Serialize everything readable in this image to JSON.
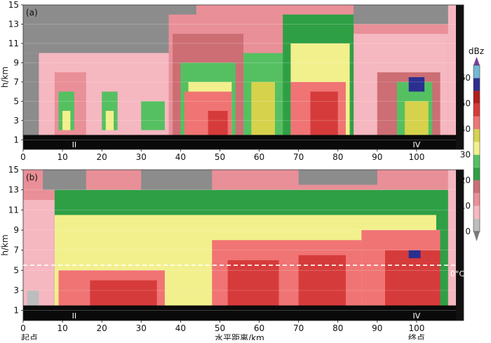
{
  "chart_data": {
    "type": "heatmap",
    "x_unit_label": "水平距离/km",
    "x_start_label": "起点",
    "x_end_label": "终点",
    "xlim": [
      0,
      110
    ],
    "x_ticks": [
      0,
      10,
      20,
      30,
      40,
      50,
      60,
      70,
      80,
      90,
      100
    ],
    "y_label": "h/km",
    "ylim": [
      0,
      15
    ],
    "y_ticks": [
      1,
      3,
      5,
      7,
      9,
      11,
      13,
      15
    ],
    "colorbar": {
      "unit": "dBz",
      "ticks": [
        0,
        10,
        20,
        30,
        40,
        50,
        60
      ],
      "levels": [
        {
          "from": -10,
          "to": 0,
          "color": "#8c8c8c"
        },
        {
          "from": 0,
          "to": 5,
          "color": "#bdbdbd"
        },
        {
          "from": 5,
          "to": 10,
          "color": "#f5b7c0"
        },
        {
          "from": 10,
          "to": 15,
          "color": "#e98f98"
        },
        {
          "from": 15,
          "to": 20,
          "color": "#cc6e74"
        },
        {
          "from": 20,
          "to": 25,
          "color": "#2f9f45"
        },
        {
          "from": 25,
          "to": 30,
          "color": "#55c062"
        },
        {
          "from": 30,
          "to": 35,
          "color": "#f2f08c"
        },
        {
          "from": 35,
          "to": 40,
          "color": "#d7d24c"
        },
        {
          "from": 40,
          "to": 45,
          "color": "#f07474"
        },
        {
          "from": 45,
          "to": 50,
          "color": "#d63b3b"
        },
        {
          "from": 50,
          "to": 55,
          "color": "#b01e1e"
        },
        {
          "from": 55,
          "to": 60,
          "color": "#2a2f8f"
        },
        {
          "from": 60,
          "to": 65,
          "color": "#74b7d4"
        }
      ]
    },
    "panels": [
      {
        "tag": "(a)",
        "markers": [
          {
            "x": 13,
            "text": "II"
          },
          {
            "x": 100,
            "text": "IV"
          }
        ],
        "cells": [
          {
            "x0": 0,
            "x1": 37,
            "y0": 10,
            "y1": 15,
            "dbz": -5
          },
          {
            "x0": 0,
            "x1": 4,
            "y0": 1.5,
            "y1": 10,
            "dbz": -5
          },
          {
            "x0": 4,
            "x1": 37,
            "y0": 1.5,
            "y1": 10,
            "dbz": 7
          },
          {
            "x0": 8,
            "x1": 16,
            "y0": 1.5,
            "y1": 8,
            "dbz": 12
          },
          {
            "x0": 9,
            "x1": 13,
            "y0": 2,
            "y1": 6,
            "dbz": 27
          },
          {
            "x0": 10,
            "x1": 12,
            "y0": 2,
            "y1": 4,
            "dbz": 32
          },
          {
            "x0": 20,
            "x1": 24,
            "y0": 2,
            "y1": 6,
            "dbz": 27
          },
          {
            "x0": 21,
            "x1": 23,
            "y0": 2,
            "y1": 4,
            "dbz": 32
          },
          {
            "x0": 30,
            "x1": 36,
            "y0": 2,
            "y1": 5,
            "dbz": 27
          },
          {
            "x0": 37,
            "x1": 108,
            "y0": 1.5,
            "y1": 15,
            "dbz": 12
          },
          {
            "x0": 37,
            "x1": 44,
            "y0": 14,
            "y1": 15,
            "dbz": -5
          },
          {
            "x0": 84,
            "x1": 108,
            "y0": 13,
            "y1": 15,
            "dbz": -5
          },
          {
            "x0": 38,
            "x1": 56,
            "y0": 1.5,
            "y1": 12,
            "dbz": 17
          },
          {
            "x0": 40,
            "x1": 54,
            "y0": 1.5,
            "y1": 9,
            "dbz": 27
          },
          {
            "x0": 42,
            "x1": 53,
            "y0": 1.5,
            "y1": 7,
            "dbz": 32
          },
          {
            "x0": 41,
            "x1": 53,
            "y0": 1.5,
            "y1": 6,
            "dbz": 42
          },
          {
            "x0": 47,
            "x1": 52,
            "y0": 1.5,
            "y1": 4,
            "dbz": 47
          },
          {
            "x0": 56,
            "x1": 66,
            "y0": 1.5,
            "y1": 10,
            "dbz": 27
          },
          {
            "x0": 58,
            "x1": 64,
            "y0": 1.5,
            "y1": 7,
            "dbz": 37
          },
          {
            "x0": 66,
            "x1": 84,
            "y0": 1.5,
            "y1": 14,
            "dbz": 22
          },
          {
            "x0": 68,
            "x1": 83,
            "y0": 1.5,
            "y1": 11,
            "dbz": 32
          },
          {
            "x0": 68,
            "x1": 82,
            "y0": 1.5,
            "y1": 7,
            "dbz": 42
          },
          {
            "x0": 73,
            "x1": 80,
            "y0": 1.5,
            "y1": 6,
            "dbz": 47
          },
          {
            "x0": 84,
            "x1": 108,
            "y0": 1.5,
            "y1": 12,
            "dbz": 7
          },
          {
            "x0": 90,
            "x1": 106,
            "y0": 1.5,
            "y1": 8,
            "dbz": 17
          },
          {
            "x0": 95,
            "x1": 104,
            "y0": 1.5,
            "y1": 7,
            "dbz": 27
          },
          {
            "x0": 97,
            "x1": 103,
            "y0": 1.5,
            "y1": 5,
            "dbz": 37
          },
          {
            "x0": 98,
            "x1": 102,
            "y0": 6,
            "y1": 7.5,
            "dbz": 57
          }
        ]
      },
      {
        "tag": "(b)",
        "freezing_level": {
          "h": 5.5,
          "text": "0°C"
        },
        "markers": [
          {
            "x": 13,
            "text": "II"
          },
          {
            "x": 100,
            "text": "IV"
          }
        ],
        "cells": [
          {
            "x0": 0,
            "x1": 108,
            "y0": 1.5,
            "y1": 15,
            "dbz": 12
          },
          {
            "x0": 5,
            "x1": 16,
            "y0": 13,
            "y1": 15,
            "dbz": -5
          },
          {
            "x0": 30,
            "x1": 48,
            "y0": 13,
            "y1": 15,
            "dbz": -5
          },
          {
            "x0": 70,
            "x1": 90,
            "y0": 13.5,
            "y1": 15,
            "dbz": -5
          },
          {
            "x0": 0,
            "x1": 8,
            "y0": 1.5,
            "y1": 12,
            "dbz": 7
          },
          {
            "x0": 1,
            "x1": 4,
            "y0": 1.5,
            "y1": 3,
            "dbz": 2
          },
          {
            "x0": 8,
            "x1": 108,
            "y0": 1.5,
            "y1": 13,
            "dbz": 22
          },
          {
            "x0": 8,
            "x1": 105,
            "y0": 1.5,
            "y1": 10.5,
            "dbz": 32
          },
          {
            "x0": 9,
            "x1": 36,
            "y0": 1.5,
            "y1": 5,
            "dbz": 42
          },
          {
            "x0": 17,
            "x1": 34,
            "y0": 1.5,
            "y1": 4,
            "dbz": 47
          },
          {
            "x0": 48,
            "x1": 86,
            "y0": 1.5,
            "y1": 8,
            "dbz": 42
          },
          {
            "x0": 52,
            "x1": 65,
            "y0": 1.5,
            "y1": 6,
            "dbz": 47
          },
          {
            "x0": 70,
            "x1": 82,
            "y0": 1.5,
            "y1": 6.5,
            "dbz": 47
          },
          {
            "x0": 86,
            "x1": 106,
            "y0": 1.5,
            "y1": 9,
            "dbz": 42
          },
          {
            "x0": 92,
            "x1": 106,
            "y0": 1.5,
            "y1": 7,
            "dbz": 47
          },
          {
            "x0": 98,
            "x1": 101,
            "y0": 6.2,
            "y1": 7,
            "dbz": 57
          }
        ]
      }
    ]
  },
  "colors": {
    "ground": "#0a0a0a",
    "right_strip": "#111111",
    "freezing_line": "#ffffff"
  }
}
